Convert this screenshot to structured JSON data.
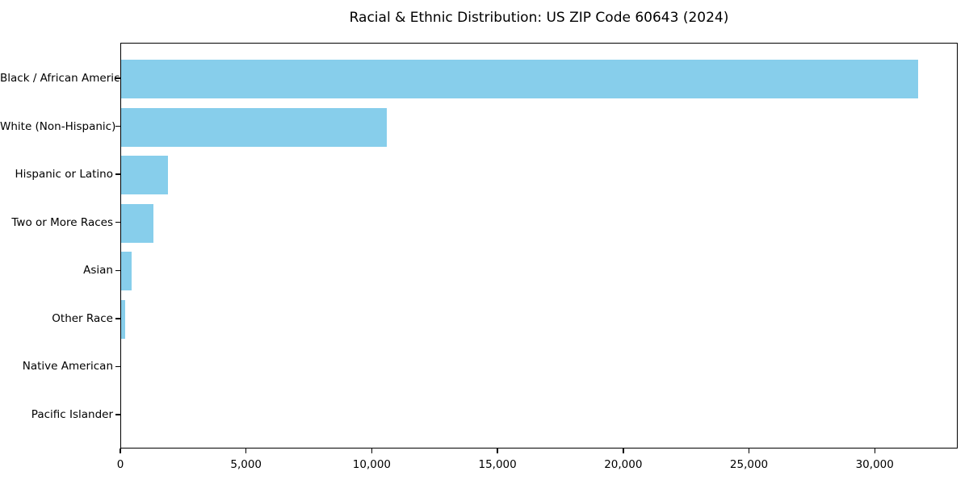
{
  "chart_data": {
    "type": "bar",
    "orientation": "horizontal",
    "title": "Racial & Ethnic Distribution: US ZIP Code 60643 (2024)",
    "xlabel": "",
    "ylabel": "",
    "categories": [
      "Black / African American",
      "White (Non-Hispanic)",
      "Hispanic or Latino",
      "Two or More Races",
      "Asian",
      "Other Race",
      "Native American",
      "Pacific Islander"
    ],
    "values": [
      31700,
      10550,
      1850,
      1300,
      410,
      150,
      0,
      0
    ],
    "xlim": [
      0,
      33300
    ],
    "x_ticks": [
      0,
      5000,
      10000,
      15000,
      20000,
      25000,
      30000
    ],
    "x_tick_labels": [
      "0",
      "5,000",
      "10,000",
      "15,000",
      "20,000",
      "25,000",
      "30,000"
    ],
    "bar_color": "#87CEEB",
    "background_color": "#ffffff",
    "spine_color": "#000000",
    "grid": false,
    "legend": null
  }
}
